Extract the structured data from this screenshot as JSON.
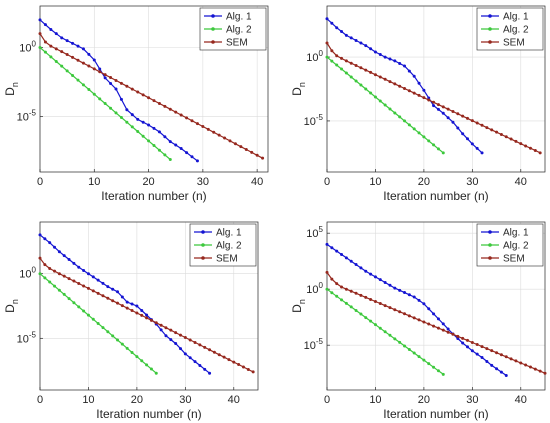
{
  "chart_data": [
    {
      "type": "line",
      "ylabel": "D",
      "ylabel_sub": "n",
      "xlabel": "Iteration number (n)",
      "yscale": "log",
      "xlim": [
        0,
        42
      ],
      "ylim": [
        1e-09,
        1000.0
      ],
      "xticks": [
        0,
        10,
        20,
        30,
        40
      ],
      "yticks": [
        {
          "value": 1.0,
          "label": "10",
          "exp": "0"
        },
        {
          "value": 1e-05,
          "label": "10",
          "exp": "-5"
        }
      ],
      "grid": true,
      "legend_position": "top-right",
      "series": [
        {
          "name": "Alg. 1",
          "color": "#1414d2",
          "marker": "dot",
          "x": [
            0,
            2,
            4,
            6,
            8,
            10,
            12,
            14,
            16,
            18,
            20,
            22,
            24,
            26,
            28,
            29
          ],
          "log10_y": [
            2.0,
            1.3,
            0.7,
            0.3,
            -0.1,
            -0.9,
            -2.2,
            -3.0,
            -4.5,
            -5.2,
            -5.6,
            -6.1,
            -6.8,
            -7.3,
            -7.9,
            -8.2
          ]
        },
        {
          "name": "Alg. 2",
          "color": "#3cc83c",
          "marker": "dot",
          "x": [
            0,
            24
          ],
          "log10_y": [
            0.0,
            -8.1
          ]
        },
        {
          "name": "SEM",
          "color": "#96281e",
          "marker": "dot",
          "x": [
            0,
            1,
            2,
            3,
            4,
            41
          ],
          "log10_y": [
            1.0,
            0.4,
            0.1,
            -0.1,
            -0.3,
            -8.0
          ]
        }
      ]
    },
    {
      "type": "line",
      "ylabel": "D",
      "ylabel_sub": "n",
      "xlabel": "Iteration number (n)",
      "yscale": "log",
      "xlim": [
        0,
        45
      ],
      "ylim": [
        1e-09,
        10000.0
      ],
      "xticks": [
        0,
        10,
        20,
        30,
        40
      ],
      "yticks": [
        {
          "value": 1.0,
          "label": "10",
          "exp": "0"
        },
        {
          "value": 1e-05,
          "label": "10",
          "exp": "-5"
        }
      ],
      "grid": true,
      "legend_position": "top-right",
      "series": [
        {
          "name": "Alg. 1",
          "color": "#1414d2",
          "marker": "dot",
          "x": [
            0,
            2,
            4,
            6,
            8,
            10,
            12,
            14,
            16,
            18,
            20,
            22,
            24,
            26,
            28,
            30,
            32
          ],
          "log10_y": [
            3.0,
            2.3,
            1.7,
            1.3,
            0.9,
            0.4,
            0.0,
            -0.3,
            -0.7,
            -1.5,
            -2.6,
            -3.8,
            -4.4,
            -5.1,
            -6.0,
            -6.8,
            -7.5
          ]
        },
        {
          "name": "Alg. 2",
          "color": "#3cc83c",
          "marker": "dot",
          "x": [
            0,
            24
          ],
          "log10_y": [
            0.0,
            -7.5
          ]
        },
        {
          "name": "SEM",
          "color": "#96281e",
          "marker": "dot",
          "x": [
            0,
            1,
            2,
            3,
            4,
            44
          ],
          "log10_y": [
            1.1,
            0.5,
            0.1,
            -0.1,
            -0.3,
            -7.5
          ]
        }
      ]
    },
    {
      "type": "line",
      "ylabel": "D",
      "ylabel_sub": "n",
      "xlabel": "Iteration number (n)",
      "yscale": "log",
      "xlim": [
        0,
        45
      ],
      "ylim": [
        1e-09,
        10000.0
      ],
      "xticks": [
        0,
        10,
        20,
        30,
        40
      ],
      "yticks": [
        {
          "value": 1.0,
          "label": "10",
          "exp": "0"
        },
        {
          "value": 1e-05,
          "label": "10",
          "exp": "-5"
        }
      ],
      "grid": true,
      "legend_position": "top-right",
      "series": [
        {
          "name": "Alg. 1",
          "color": "#1414d2",
          "marker": "dot",
          "x": [
            0,
            2,
            4,
            6,
            8,
            10,
            12,
            14,
            16,
            18,
            20,
            22,
            24,
            26,
            28,
            30,
            32,
            35
          ],
          "log10_y": [
            3.0,
            2.4,
            1.7,
            1.1,
            0.5,
            0.0,
            -0.5,
            -1.0,
            -1.4,
            -2.2,
            -2.5,
            -3.2,
            -3.9,
            -4.8,
            -5.4,
            -6.2,
            -6.8,
            -7.7
          ]
        },
        {
          "name": "Alg. 2",
          "color": "#3cc83c",
          "marker": "dot",
          "x": [
            0,
            24
          ],
          "log10_y": [
            0.0,
            -7.7
          ]
        },
        {
          "name": "SEM",
          "color": "#96281e",
          "marker": "dot",
          "x": [
            0,
            1,
            2,
            3,
            4,
            44
          ],
          "log10_y": [
            1.2,
            0.7,
            0.4,
            0.2,
            0.0,
            -7.6
          ]
        }
      ]
    },
    {
      "type": "line",
      "ylabel": "D",
      "ylabel_sub": "n",
      "xlabel": "Iteration number (n)",
      "yscale": "log",
      "xlim": [
        0,
        45
      ],
      "ylim": [
        1e-09,
        1000000.0
      ],
      "xticks": [
        0,
        10,
        20,
        30,
        40
      ],
      "yticks": [
        {
          "value": 100000.0,
          "label": "10",
          "exp": "5"
        },
        {
          "value": 1.0,
          "label": "10",
          "exp": "0"
        },
        {
          "value": 1e-05,
          "label": "10",
          "exp": "-5"
        }
      ],
      "grid": true,
      "legend_position": "top-right",
      "series": [
        {
          "name": "Alg. 1",
          "color": "#1414d2",
          "marker": "dot",
          "x": [
            0,
            2,
            4,
            6,
            8,
            10,
            12,
            14,
            16,
            18,
            20,
            22,
            24,
            26,
            28,
            30,
            32,
            34,
            37
          ],
          "log10_y": [
            4.0,
            3.4,
            2.8,
            2.2,
            1.6,
            1.1,
            0.6,
            0.1,
            -0.3,
            -0.7,
            -1.3,
            -2.2,
            -3.1,
            -4.0,
            -4.8,
            -5.5,
            -6.1,
            -6.8,
            -7.7
          ]
        },
        {
          "name": "Alg. 2",
          "color": "#3cc83c",
          "marker": "dot",
          "x": [
            0,
            24
          ],
          "log10_y": [
            0.0,
            -7.6
          ]
        },
        {
          "name": "SEM",
          "color": "#96281e",
          "marker": "dot",
          "x": [
            0,
            1,
            2,
            3,
            4,
            45
          ],
          "log10_y": [
            1.5,
            0.9,
            0.5,
            0.2,
            0.0,
            -7.5
          ]
        }
      ]
    }
  ]
}
